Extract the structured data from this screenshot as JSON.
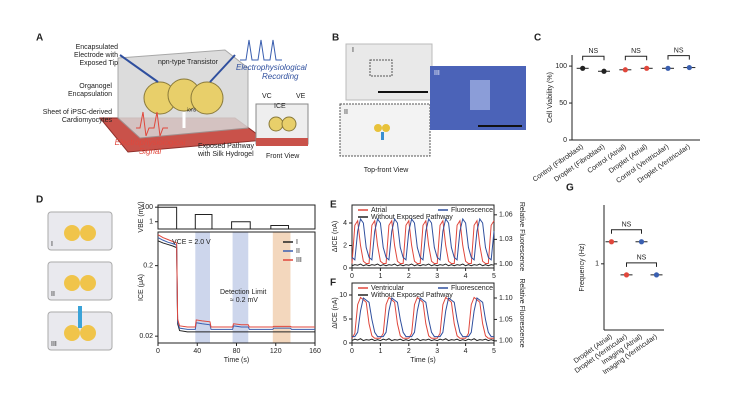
{
  "panel_a": {
    "label": "A",
    "electrode": [
      "Encapsulated",
      "Electrode with",
      "Exposed Tip"
    ],
    "transistor": "npn-type Transistor",
    "recording": [
      "Electrophysiological",
      "Recording"
    ],
    "organogel": [
      "Organogel",
      "Encapsulation"
    ],
    "sheet": [
      "Sheet of iPSC-derived",
      "Cardiomyocytes"
    ],
    "signal": [
      "Electrophysiological",
      "Signal"
    ],
    "pathway": [
      "Exposed Pathway",
      "with Silk Hydrogel"
    ],
    "front": "Front View",
    "ions": "ions",
    "vc": "VC",
    "ice": "ICE",
    "ve": "VE"
  },
  "panel_b": {
    "label": "B",
    "insets": [
      "I",
      "II",
      "III"
    ],
    "caption": "Top-front View"
  },
  "panel_d": {
    "label": "D",
    "chips": [
      "I",
      "II",
      "III"
    ]
  },
  "chart_data": [
    {
      "type": "dot",
      "label": "C",
      "ylabel": "Cell Viability (%)",
      "categories": [
        "Control (Fibroblast)",
        "Droplet (Fibroblast)",
        "Control (Atrial)",
        "Droplet (Atrial)",
        "Control (Ventricular)",
        "Droplet (Ventricular)"
      ],
      "values": [
        97,
        93,
        95,
        97,
        97,
        98
      ],
      "colors": [
        "#222222",
        "#222222",
        "#e0473c",
        "#e0473c",
        "#3a5fb0",
        "#3a5fb0"
      ],
      "ylim": [
        0,
        115
      ],
      "yticks": [
        0,
        50,
        100
      ],
      "brackets": [
        {
          "label": "NS",
          "from": 0,
          "to": 1
        },
        {
          "label": "NS",
          "from": 2,
          "to": 3
        },
        {
          "label": "NS",
          "from": 4,
          "to": 5
        }
      ]
    },
    {
      "type": "line",
      "ylabel": "VBE (mV)",
      "log": true,
      "x": [
        0,
        0,
        19,
        19,
        38,
        38,
        55,
        55,
        75,
        75,
        94,
        94,
        115,
        115,
        133,
        133,
        160
      ],
      "series": [
        {
          "color": "#222222",
          "values": [
            0.1,
            100,
            100,
            0.1,
            0.1,
            10,
            10,
            0.1,
            0.1,
            1,
            1,
            0.1,
            0.1,
            0.3,
            0.3,
            0.1,
            0.1
          ]
        }
      ],
      "xlim": [
        0,
        160
      ],
      "ylim": [
        0.1,
        200
      ],
      "yticks": [
        1,
        100
      ]
    },
    {
      "type": "line",
      "ylabel": "ICE (μA)",
      "xlabel": "Time (s)",
      "log": true,
      "x": [
        0,
        5,
        10,
        15,
        19,
        20,
        22,
        30,
        38,
        39,
        45,
        53,
        54,
        60,
        76,
        77,
        85,
        92,
        93,
        100,
        117,
        118,
        125,
        135,
        136,
        150,
        160
      ],
      "series": [
        {
          "name": "I",
          "color": "#222222",
          "values": [
            0.45,
            0.42,
            0.4,
            0.38,
            0.36,
            0.03,
            0.024,
            0.023,
            0.023,
            0.023,
            0.023,
            0.023,
            0.023,
            0.023,
            0.023,
            0.023,
            0.023,
            0.023,
            0.023,
            0.023,
            0.023,
            0.023,
            0.023,
            0.023,
            0.023,
            0.023,
            0.023
          ]
        },
        {
          "name": "II",
          "color": "#3a5fb0",
          "values": [
            0.5,
            0.46,
            0.43,
            0.41,
            0.39,
            0.032,
            0.026,
            0.025,
            0.025,
            0.031,
            0.03,
            0.029,
            0.025,
            0.025,
            0.025,
            0.028,
            0.027,
            0.027,
            0.025,
            0.025,
            0.025,
            0.026,
            0.026,
            0.026,
            0.025,
            0.025,
            0.025
          ]
        },
        {
          "name": "III",
          "color": "#e0473c",
          "values": [
            0.55,
            0.5,
            0.47,
            0.44,
            0.42,
            0.035,
            0.028,
            0.027,
            0.027,
            0.034,
            0.033,
            0.032,
            0.027,
            0.027,
            0.027,
            0.03,
            0.029,
            0.029,
            0.027,
            0.027,
            0.027,
            0.0275,
            0.0275,
            0.0275,
            0.027,
            0.027,
            0.027
          ]
        }
      ],
      "xlim": [
        0,
        160
      ],
      "xticks": [
        0,
        40,
        80,
        120,
        160
      ],
      "ylim": [
        0.016,
        0.6
      ],
      "yticks": [
        0.02,
        0.2
      ],
      "legend": "upper right",
      "bands": [
        {
          "x": [
            38,
            53
          ],
          "color": "#cdd6ec"
        },
        {
          "x": [
            76,
            92
          ],
          "color": "#cdd6ec"
        },
        {
          "x": [
            117,
            135
          ],
          "color": "#f3d7bd"
        }
      ],
      "annotations": [
        "VCE = 2.0 V",
        "Detection Limit",
        "≈ 0.2 mV"
      ]
    },
    {
      "type": "line",
      "label": "E",
      "ylabel": "ΔICE (nA)",
      "y2label": "Relative Fluorescence",
      "x": [
        0,
        0.1,
        0.2,
        0.3,
        0.4,
        0.5,
        0.6,
        0.7,
        0.8,
        0.9,
        1,
        1.1,
        1.2,
        1.3,
        1.4,
        1.5,
        1.6,
        1.7,
        1.8,
        1.9,
        2,
        2.1,
        2.2,
        2.3,
        2.4,
        2.5,
        2.6,
        2.7,
        2.8,
        2.9,
        3,
        3.1,
        3.2,
        3.3,
        3.4,
        3.5,
        3.6,
        3.7,
        3.8,
        3.9,
        4,
        4.1,
        4.2,
        4.3,
        4.4,
        4.5,
        4.6,
        4.7,
        4.8,
        4.9,
        5
      ],
      "series": [
        {
          "name": "Atrial",
          "color": "#e0473c",
          "values": [
            0.4,
            3.8,
            4.2,
            2,
            0.6,
            0.4,
            0.4,
            3.8,
            4.2,
            2,
            0.6,
            0.4,
            0.4,
            3.8,
            4.2,
            2,
            0.6,
            0.4,
            0.4,
            3.8,
            4.2,
            2,
            0.6,
            0.4,
            0.4,
            3.8,
            4.2,
            2,
            0.6,
            0.4,
            0.4,
            3.8,
            4.2,
            2,
            0.6,
            0.4,
            0.4,
            3.8,
            4.2,
            2,
            0.6,
            0.4,
            0.4,
            3.8,
            4.2,
            2,
            0.6,
            0.4,
            0.4,
            3.8,
            4.2
          ]
        },
        {
          "name": "Fluorescence",
          "color": "#2f4f9e",
          "axis": "y2",
          "values": [
            1.008,
            1.005,
            1.04,
            1.055,
            1.05,
            1.02,
            1.008,
            1.005,
            1.04,
            1.055,
            1.05,
            1.02,
            1.008,
            1.005,
            1.04,
            1.055,
            1.05,
            1.02,
            1.008,
            1.005,
            1.04,
            1.055,
            1.05,
            1.02,
            1.008,
            1.005,
            1.04,
            1.055,
            1.05,
            1.02,
            1.008,
            1.005,
            1.04,
            1.055,
            1.05,
            1.02,
            1.008,
            1.005,
            1.04,
            1.055,
            1.05,
            1.02,
            1.008,
            1.005,
            1.04,
            1.055,
            1.05,
            1.02,
            1.008,
            1.005,
            1.04
          ]
        },
        {
          "name": "Without Exposed Pathway",
          "color": "#222222",
          "values": [
            0.2,
            0.3,
            0.25,
            0.35,
            0.2,
            0.3,
            0.2,
            0.3,
            0.25,
            0.35,
            0.2,
            0.3,
            0.2,
            0.3,
            0.25,
            0.35,
            0.2,
            0.3,
            0.2,
            0.3,
            0.25,
            0.35,
            0.2,
            0.3,
            0.2,
            0.3,
            0.25,
            0.35,
            0.2,
            0.3,
            0.2,
            0.3,
            0.25,
            0.35,
            0.2,
            0.3,
            0.2,
            0.3,
            0.25,
            0.35,
            0.2,
            0.3,
            0.2,
            0.3,
            0.25,
            0.35,
            0.2,
            0.3,
            0.2,
            0.3,
            0.25
          ]
        }
      ],
      "xlim": [
        0,
        5
      ],
      "xticks": [
        0,
        1,
        2,
        3,
        4,
        5
      ],
      "ylim": [
        0,
        5.6
      ],
      "yticks": [
        0,
        2,
        4
      ],
      "y2lim": [
        0.995,
        1.072
      ],
      "y2ticks": [
        {
          "value": 1,
          "label": "1.00"
        },
        1.03,
        1.06
      ],
      "legend": "upper"
    },
    {
      "type": "line",
      "label": "F",
      "ylabel": "ΔICE (nA)",
      "y2label": "Relative Fluorescence",
      "xlabel": "Time (s)",
      "x": [
        0,
        0.1,
        0.2,
        0.3,
        0.4,
        0.5,
        0.6,
        0.7,
        0.8,
        0.9,
        1,
        1.1,
        1.2,
        1.3,
        1.4,
        1.5,
        1.6,
        1.7,
        1.8,
        1.9,
        2,
        2.1,
        2.2,
        2.3,
        2.4,
        2.5,
        2.6,
        2.7,
        2.8,
        2.9,
        3,
        3.1,
        3.2,
        3.3,
        3.4,
        3.5,
        3.6,
        3.7,
        3.8,
        3.9,
        4,
        4.1,
        4.2,
        4.3,
        4.4,
        4.5,
        4.6,
        4.7,
        4.8,
        4.9,
        5
      ],
      "series": [
        {
          "name": "Ventricular",
          "color": "#e0473c",
          "values": [
            1,
            2,
            8,
            9.5,
            9,
            8.5,
            4,
            1.5,
            1,
            1,
            1,
            2,
            8,
            9.5,
            9,
            8.5,
            4,
            1.5,
            1,
            1,
            1,
            2,
            8,
            9.5,
            9,
            8.5,
            4,
            1.5,
            1,
            1,
            1,
            2,
            8,
            9.5,
            9,
            8.5,
            4,
            1.5,
            1,
            1,
            1,
            2,
            8,
            9.5,
            9,
            8.5,
            4,
            1.5,
            1,
            1,
            1
          ]
        },
        {
          "name": "Fluorescence",
          "color": "#2f4f9e",
          "axis": "y2",
          "values": [
            1.01,
            1.01,
            1.02,
            1.07,
            1.1,
            1.095,
            1.09,
            1.05,
            1.02,
            1.01,
            1.01,
            1.01,
            1.02,
            1.07,
            1.1,
            1.095,
            1.09,
            1.05,
            1.02,
            1.01,
            1.01,
            1.01,
            1.02,
            1.07,
            1.1,
            1.095,
            1.09,
            1.05,
            1.02,
            1.01,
            1.01,
            1.01,
            1.02,
            1.07,
            1.1,
            1.095,
            1.09,
            1.05,
            1.02,
            1.01,
            1.01,
            1.01,
            1.02,
            1.07,
            1.1,
            1.095,
            1.09,
            1.05,
            1.02,
            1.01,
            1.01
          ]
        },
        {
          "name": "Without Exposed Pathway",
          "color": "#222222",
          "values": [
            0.5,
            0.8,
            0.6,
            0.9,
            0.5,
            0.7,
            0.6,
            0.8,
            0.5,
            0.7,
            0.5,
            0.8,
            0.6,
            0.9,
            0.5,
            0.7,
            0.6,
            0.8,
            0.5,
            0.7,
            0.5,
            0.8,
            0.6,
            0.9,
            0.5,
            0.7,
            0.6,
            0.8,
            0.5,
            0.7,
            0.5,
            0.8,
            0.6,
            0.9,
            0.5,
            0.7,
            0.6,
            0.8,
            0.5,
            0.7,
            0.5,
            0.8,
            0.6,
            0.9,
            0.5,
            0.7,
            0.6,
            0.8,
            0.5,
            0.7,
            0.5
          ]
        }
      ],
      "xlim": [
        0,
        5
      ],
      "xticks": [
        0,
        1,
        2,
        3,
        4,
        5
      ],
      "ylim": [
        0,
        12.5
      ],
      "yticks": [
        0,
        5,
        10
      ],
      "y2lim": [
        0.995,
        1.135
      ],
      "y2ticks": [
        {
          "value": 1,
          "label": "1.00"
        },
        1.05,
        {
          "value": 1.1,
          "label": "1.10"
        }
      ],
      "legend": "upper"
    },
    {
      "type": "dot",
      "label": "G",
      "ylabel": "Frequency (Hz)",
      "categories": [
        "Droplet (Atrial)",
        "Droplet (Ventricular)",
        "Imaging (Atrial)",
        "Imaging (Ventricular)"
      ],
      "values": [
        1.3,
        0.85,
        1.3,
        0.85
      ],
      "colors": [
        "#e0473c",
        "#e0473c",
        "#3a5fb0",
        "#3a5fb0"
      ],
      "ylim": [
        0.1,
        1.8
      ],
      "yticks": [
        1
      ],
      "brackets": [
        {
          "label": "NS",
          "from": 0,
          "to": 2
        },
        {
          "label": "NS",
          "from": 1,
          "to": 3
        }
      ]
    }
  ]
}
